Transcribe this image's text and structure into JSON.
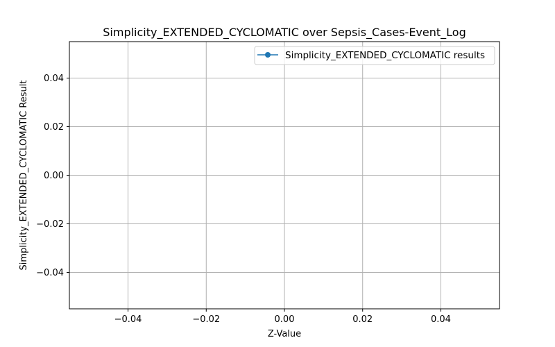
{
  "chart_data": {
    "type": "line",
    "title": "Simplicity_EXTENDED_CYCLOMATIC over Sepsis_Cases-Event_Log",
    "xlabel": "Z-Value",
    "ylabel": "Simplicity_EXTENDED_CYCLOMATIC Result",
    "xlim": [
      -0.055,
      0.055
    ],
    "ylim": [
      -0.055,
      0.055
    ],
    "xticks": [
      -0.04,
      -0.02,
      0.0,
      0.02,
      0.04
    ],
    "xtick_labels": [
      "−0.04",
      "−0.02",
      "0.00",
      "0.02",
      "0.04"
    ],
    "yticks": [
      -0.04,
      -0.02,
      0.0,
      0.02,
      0.04
    ],
    "ytick_labels": [
      "−0.04",
      "−0.02",
      "0.00",
      "0.02",
      "0.04"
    ],
    "grid": true,
    "legend_position": "top-right",
    "series": [
      {
        "name": "Simplicity_EXTENDED_CYCLOMATIC results",
        "color": "#1f77b4",
        "marker": "circle",
        "x": [],
        "y": []
      }
    ]
  }
}
